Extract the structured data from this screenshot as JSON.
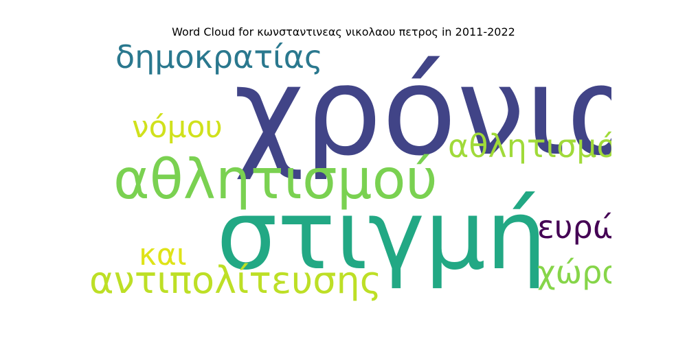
{
  "chart_data": {
    "type": "wordcloud",
    "title": "Word Cloud for κωνσταντινεας νικολαου πετρος in 2011-2022",
    "words": [
      {
        "text": "χρόνια",
        "color": "#414487"
      },
      {
        "text": "στιγμή",
        "color": "#22a884"
      },
      {
        "text": "αθλητισμού",
        "color": "#7ad151"
      },
      {
        "text": "δημοκρατίας",
        "color": "#2a788e"
      },
      {
        "text": "αντιπολίτευσης",
        "color": "#bddf26"
      },
      {
        "text": "αθλητισμό",
        "color": "#a0da39"
      },
      {
        "text": "νόμου",
        "color": "#d0e11c"
      },
      {
        "text": "ευρώ",
        "color": "#440154"
      },
      {
        "text": "χώρα",
        "color": "#86d549"
      },
      {
        "text": "και",
        "color": "#dfe318"
      }
    ]
  }
}
